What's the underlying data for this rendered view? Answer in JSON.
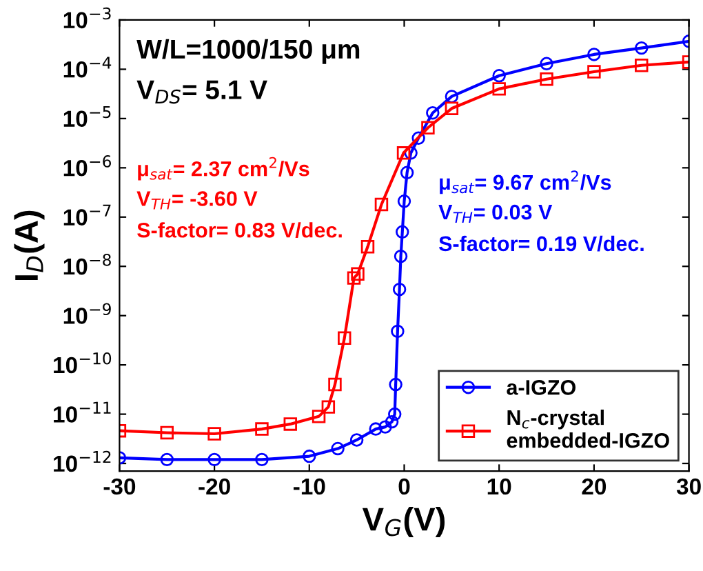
{
  "chart_data": {
    "type": "line",
    "xlabel": "V$_{G}$(V)",
    "ylabel": "I$_{D}$(A)",
    "xlim": [
      -30,
      30
    ],
    "xticks": [
      -30,
      -20,
      -10,
      0,
      10,
      20,
      30
    ],
    "ylim": [
      7e-13,
      0.001
    ],
    "log": "y",
    "yticks": [
      {
        "value": 1e-12,
        "label": "10$^{−12}$"
      },
      {
        "value": 1e-11,
        "label": "10$^{−11}$"
      },
      {
        "value": 1e-10,
        "label": "10$^{−10}$"
      },
      {
        "value": 1e-09,
        "label": "10$^{−9}$"
      },
      {
        "value": 1e-08,
        "label": "10$^{−8}$"
      },
      {
        "value": 1e-07,
        "label": "10$^{−7}$"
      },
      {
        "value": 1e-06,
        "label": "10$^{−6}$"
      },
      {
        "value": 1e-05,
        "label": "10$^{−5}$"
      },
      {
        "value": 0.0001,
        "label": "10$^{−4}$"
      },
      {
        "value": 0.001,
        "label": "10$^{−3}$"
      }
    ],
    "grid": false,
    "legend": "bottom right",
    "annotations": [
      "W/L=1000/150 μm",
      "V$_{DS}$= 5.1 V",
      "μ$_{sat}$= 2.37 cm$^{2}$/Vs",
      "V$_{TH}$= -3.60 V",
      "S-factor= 0.83 V/dec.",
      "μ$_{sat}$= 9.67 cm$^{2}$/Vs",
      "V$_{TH}$= 0.03 V",
      "S-factor= 0.19 V/dec."
    ],
    "series": [
      {
        "name": "a-IGZO",
        "color": "#0000ff",
        "marker": "circle",
        "line_style": "solid",
        "x": [
          -30,
          -25,
          -20,
          -15,
          -10,
          -7,
          -5,
          -3,
          -2,
          -1.3,
          -1.0,
          -0.9,
          -0.7,
          -0.5,
          -0.36,
          -0.2,
          0,
          0.3,
          0.7,
          1.5,
          3,
          5,
          10,
          15,
          20,
          25,
          30
        ],
        "values": [
          1.3e-12,
          1.2e-12,
          1.2e-12,
          1.2e-12,
          1.4e-12,
          2e-12,
          3e-12,
          5e-12,
          5.5e-12,
          7e-12,
          1e-11,
          4e-11,
          4.8e-10,
          3.4e-09,
          1.6e-08,
          5e-08,
          2.1e-07,
          8e-07,
          2e-06,
          4e-06,
          1.3e-05,
          2.8e-05,
          7.4e-05,
          0.00013,
          0.0002,
          0.00027,
          0.00037
        ]
      },
      {
        "name": "N$_{c}$-crystal\nembedded-IGZO",
        "color": "#ff0000",
        "marker": "square",
        "line_style": "solid",
        "x": [
          -30,
          -25,
          -20,
          -15,
          -12,
          -9,
          -8,
          -7.3,
          -6.3,
          -5.3,
          -4.9,
          -3.85,
          -2.4,
          -0.07,
          2.5,
          5,
          10,
          15,
          20,
          25,
          30
        ],
        "values": [
          4.6e-12,
          4.2e-12,
          4e-12,
          5e-12,
          6.3e-12,
          9e-12,
          1.4e-11,
          4e-11,
          3.5e-10,
          5.8e-09,
          7e-09,
          2.5e-08,
          1.8e-07,
          2e-06,
          6.5e-06,
          1.6e-05,
          4e-05,
          6.3e-05,
          8.9e-05,
          0.00012,
          0.00014
        ]
      }
    ]
  }
}
